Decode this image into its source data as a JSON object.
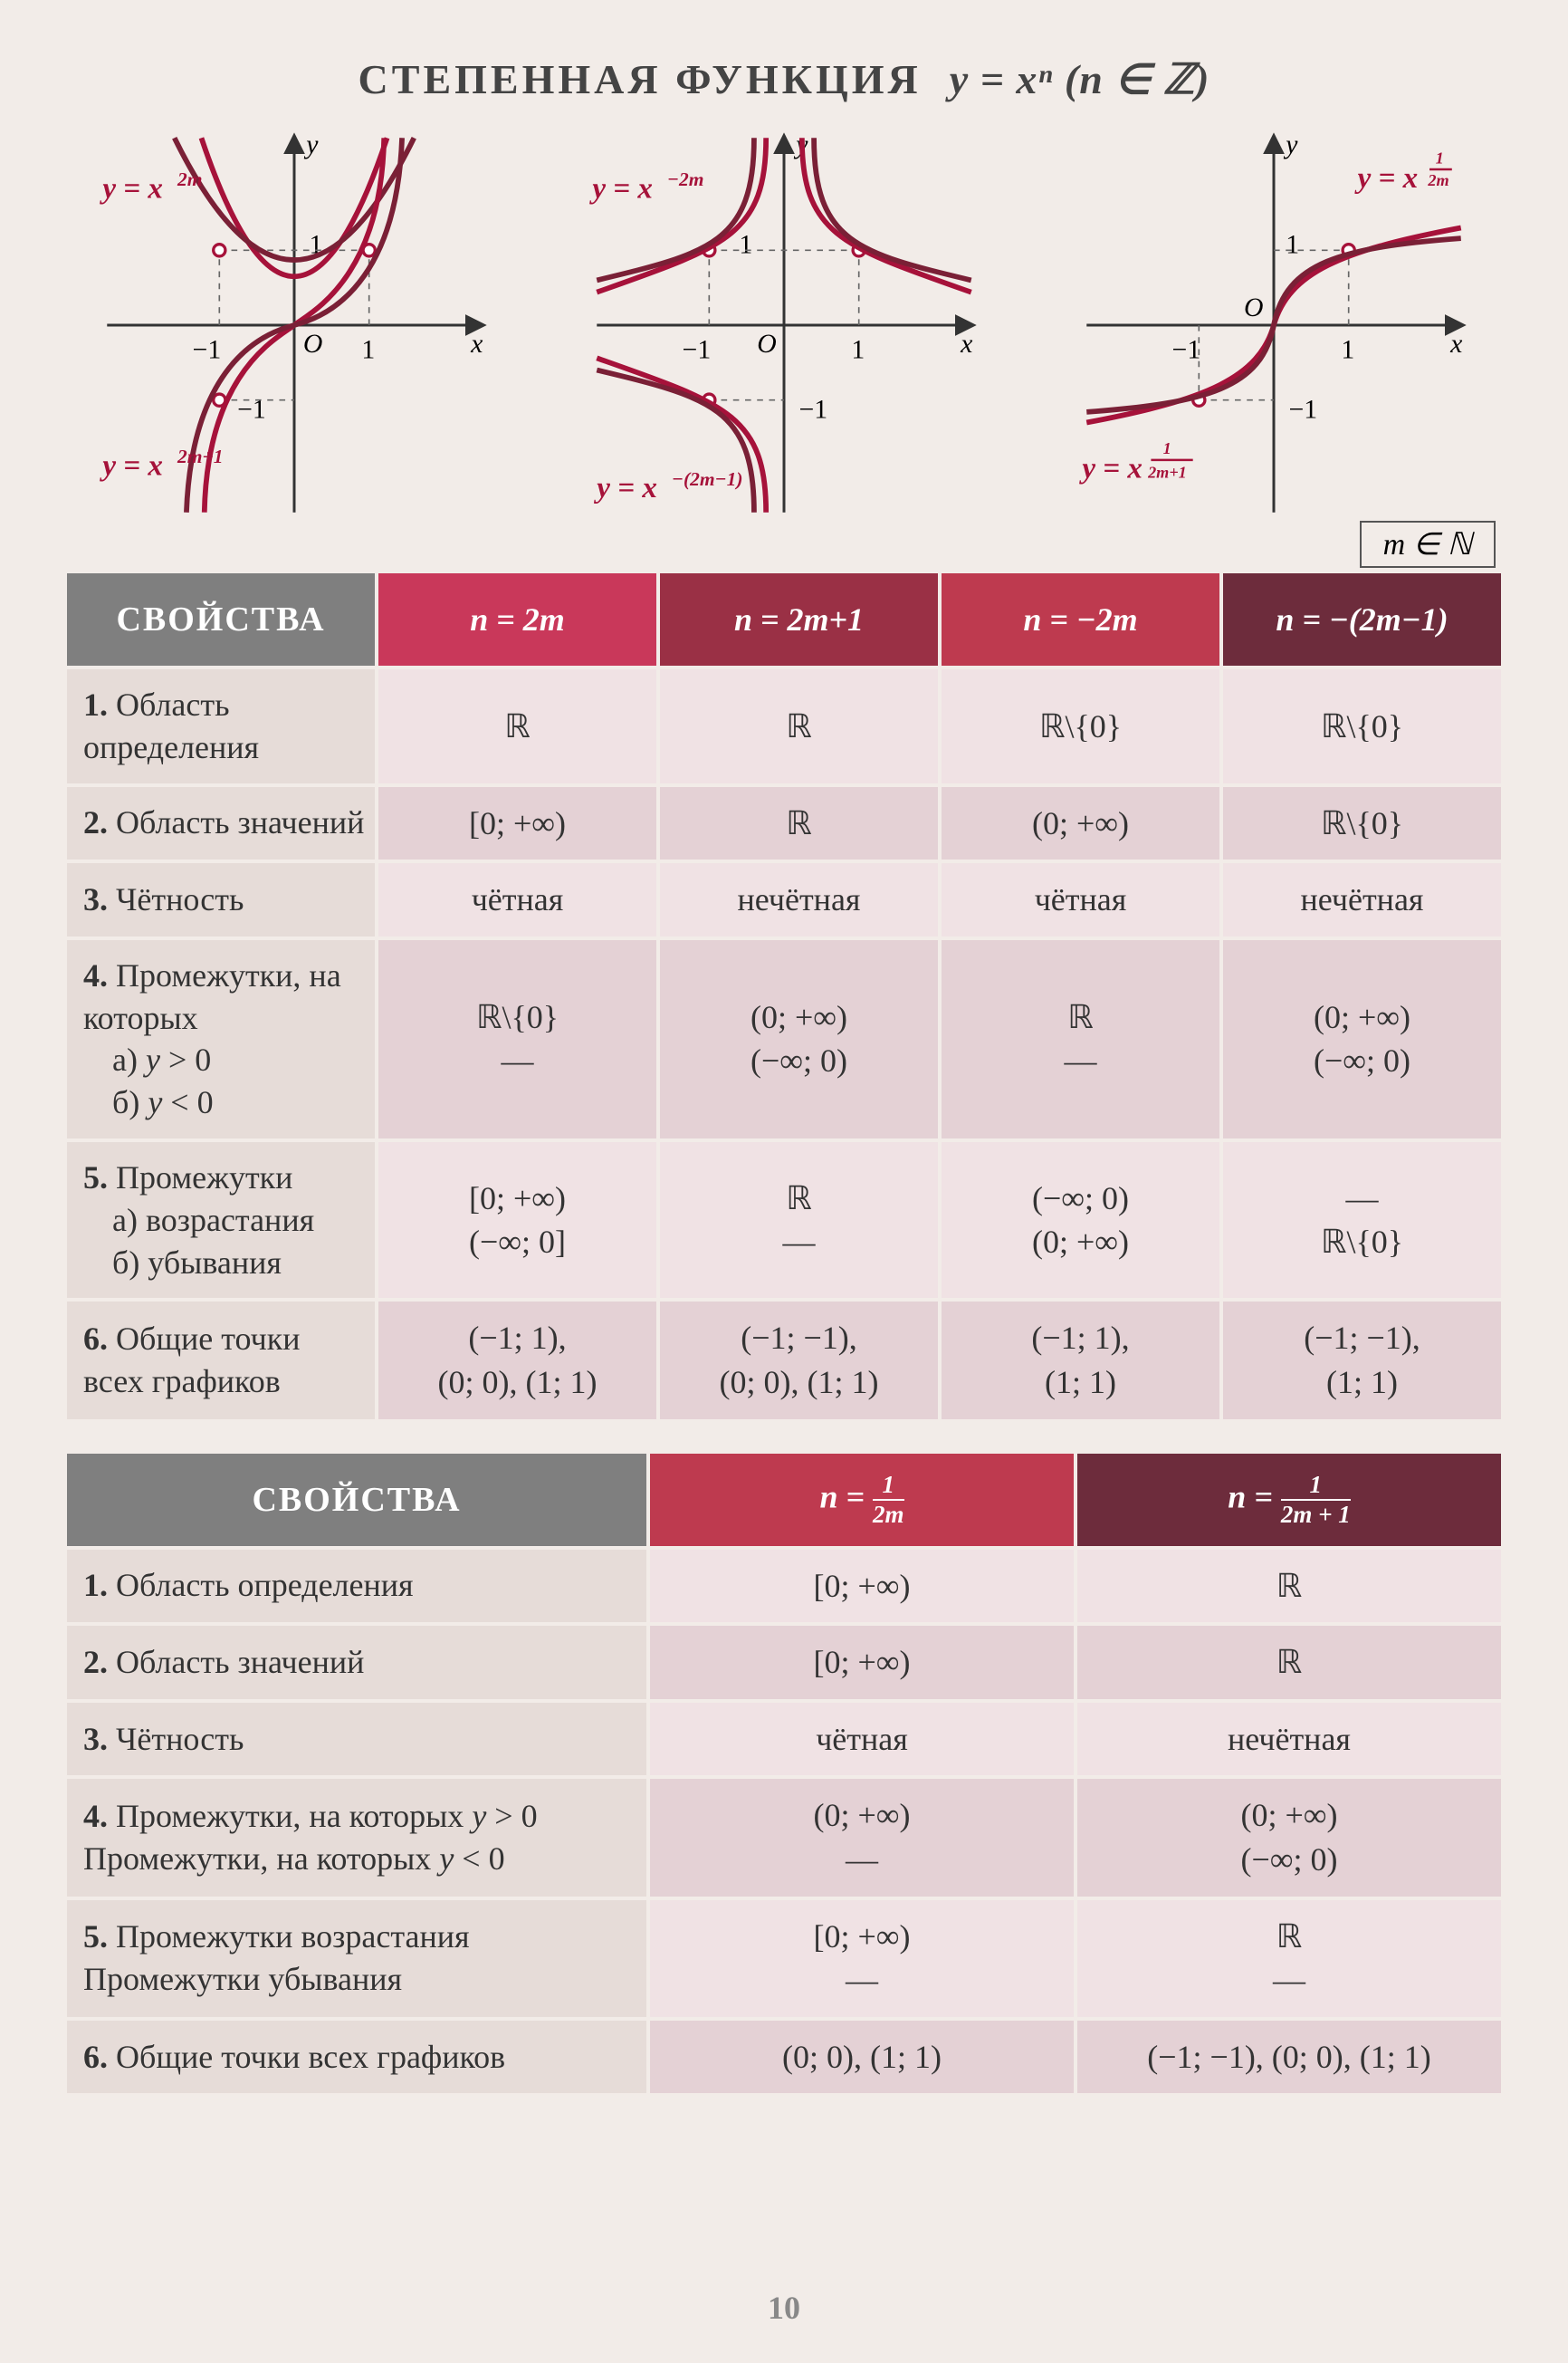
{
  "title_plain": "СТЕПЕННАЯ ФУНКЦИЯ",
  "title_formula": "y = xⁿ  (n ∈ ℤ)",
  "note": "m ∈ ℕ",
  "page_number": "10",
  "colors": {
    "grey": "#7f7f7f",
    "red": "#c9385a",
    "darkred": "#9a3045",
    "darkpink": "#be3a4f",
    "maroon": "#6d2c3c",
    "row_light": "#f0e2e4",
    "row_dark": "#e4d1d5",
    "label_bg": "#e6dcd8",
    "curve": "#a6123a",
    "curve2": "#7a2036",
    "axis": "#333",
    "page_bg": "#f2ece8"
  },
  "graphs": [
    {
      "labels": [
        "y = x^{2m}",
        "y = x^{2m+1}"
      ],
      "axis_labels": [
        "x",
        "y",
        "O",
        "1",
        "-1",
        "1",
        "-1"
      ]
    },
    {
      "labels": [
        "y = x^{-2m}",
        "y = x^{-(2m-1)}"
      ],
      "axis_labels": [
        "x",
        "y",
        "O",
        "1",
        "-1",
        "1",
        "-1"
      ]
    },
    {
      "labels": [
        "y = x^{1/2m}",
        "y = x^{1/(2m+1)}"
      ],
      "axis_labels": [
        "x",
        "y",
        "O",
        "1",
        "-1",
        "1",
        "-1"
      ]
    }
  ],
  "table1": {
    "header_props": "СВОЙСТВА",
    "headers": [
      "n = 2m",
      "n = 2m+1",
      "n = −2m",
      "n = −(2m−1)"
    ],
    "rows": [
      {
        "num": "1.",
        "label": "Область определения",
        "cells": [
          "ℝ",
          "ℝ",
          "ℝ\\{0}",
          "ℝ\\{0}"
        ]
      },
      {
        "num": "2.",
        "label": "Область значений",
        "cells": [
          "[0; +∞)",
          "ℝ",
          "(0; +∞)",
          "ℝ\\{0}"
        ]
      },
      {
        "num": "3.",
        "label": "Чётность",
        "cells": [
          "чётная",
          "нечётная",
          "чётная",
          "нечётная"
        ]
      },
      {
        "num": "4.",
        "label": "Промежутки, на которых",
        "sub": [
          "а) y > 0",
          "б) y < 0"
        ],
        "cells": [
          "ℝ\\{0}\n—",
          "(0; +∞)\n(−∞; 0)",
          "ℝ\n—",
          "(0; +∞)\n(−∞; 0)"
        ]
      },
      {
        "num": "5.",
        "label": "Промежутки",
        "sub": [
          "а) возрастания",
          "б) убывания"
        ],
        "cells": [
          "[0; +∞)\n(−∞; 0]",
          "ℝ\n—",
          "(−∞; 0)\n(0; +∞)",
          "—\nℝ\\{0}"
        ]
      },
      {
        "num": "6.",
        "label": "Общие точки всех графиков",
        "cells": [
          "(−1; 1),\n(0; 0), (1; 1)",
          "(−1; −1),\n(0; 0), (1; 1)",
          "(−1; 1),\n(1; 1)",
          "(−1; −1),\n(1; 1)"
        ]
      }
    ]
  },
  "table2": {
    "header_props": "СВОЙСТВА",
    "headers_frac": [
      {
        "pre": "n = ",
        "num": "1",
        "den": "2m"
      },
      {
        "pre": "n = ",
        "num": "1",
        "den": "2m + 1"
      }
    ],
    "rows": [
      {
        "num": "1.",
        "label": "Область определения",
        "cells": [
          "[0; +∞)",
          "ℝ"
        ]
      },
      {
        "num": "2.",
        "label": "Область значений",
        "cells": [
          "[0; +∞)",
          "ℝ"
        ]
      },
      {
        "num": "3.",
        "label": "Чётность",
        "cells": [
          "чётная",
          "нечётная"
        ]
      },
      {
        "num": "4.",
        "label": "Промежутки, на которых y > 0",
        "sub1": "Промежутки, на которых y < 0",
        "cells": [
          "(0; +∞)\n—",
          "(0; +∞)\n(−∞; 0)"
        ]
      },
      {
        "num": "5.",
        "label": "Промежутки возрастания",
        "sub1": "Промежутки убывания",
        "cells": [
          "[0; +∞)\n—",
          "ℝ\n—"
        ]
      },
      {
        "num": "6.",
        "label": "Общие точки всех графиков",
        "cells": [
          "(0; 0), (1; 1)",
          "(−1; −1), (0; 0), (1; 1)"
        ]
      }
    ]
  }
}
